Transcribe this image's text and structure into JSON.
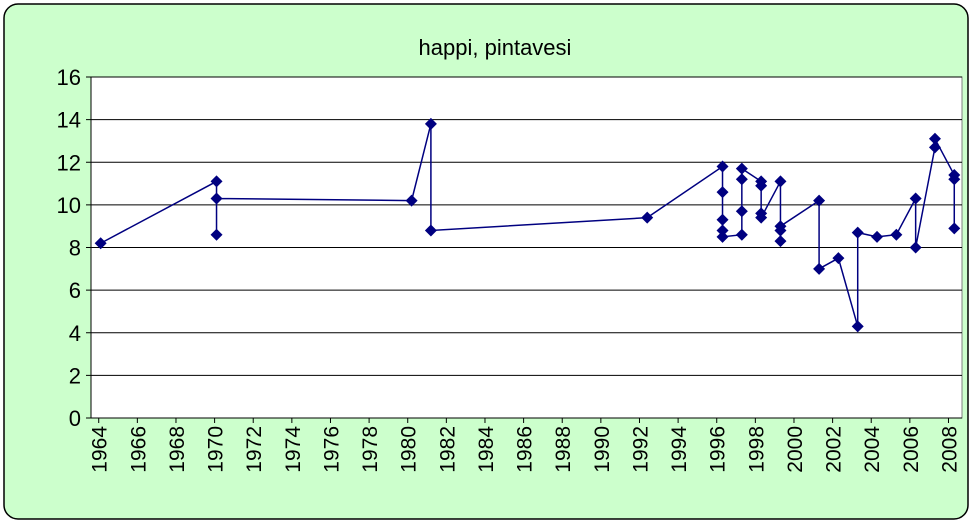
{
  "chart_data": {
    "type": "line",
    "title": "happi, pintavesi",
    "x": [
      1964.1,
      1970.1,
      1970.1,
      1970.1,
      1980.2,
      1981.2,
      1981.2,
      1992.4,
      1996.3,
      1996.3,
      1996.3,
      1996.3,
      1996.3,
      1997.3,
      1997.3,
      1997.3,
      1997.3,
      1998.3,
      1998.3,
      1998.3,
      1998.3,
      1999.3,
      1999.3,
      1999.3,
      1999.3,
      2001.3,
      2001.3,
      2002.3,
      2003.3,
      2003.3,
      2004.3,
      2005.3,
      2006.3,
      2006.3,
      2007.3,
      2007.3,
      2008.3,
      2008.3,
      2008.3
    ],
    "series": [
      {
        "color": "#000080",
        "values": [
          8.2,
          11.1,
          8.6,
          10.3,
          10.2,
          13.8,
          8.8,
          9.4,
          11.8,
          10.6,
          9.3,
          8.8,
          8.5,
          8.6,
          9.7,
          11.2,
          11.7,
          11.1,
          10.9,
          9.6,
          9.4,
          11.1,
          8.3,
          8.8,
          9.0,
          10.2,
          7.0,
          7.5,
          4.3,
          8.7,
          8.5,
          8.6,
          10.3,
          8.0,
          12.7,
          13.1,
          11.4,
          11.2,
          8.9
        ]
      }
    ],
    "xlim": [
      1963.6,
      2008.7
    ],
    "xticks": [
      1964,
      1966,
      1968,
      1970,
      1972,
      1974,
      1976,
      1978,
      1980,
      1982,
      1984,
      1986,
      1988,
      1990,
      1992,
      1994,
      1996,
      1998,
      2000,
      2002,
      2004,
      2006,
      2008
    ],
    "ylim": [
      0,
      16
    ],
    "yticks": [
      0,
      2,
      4,
      6,
      8,
      10,
      12,
      14,
      16
    ],
    "grid": true,
    "background": "#ccffcc"
  }
}
